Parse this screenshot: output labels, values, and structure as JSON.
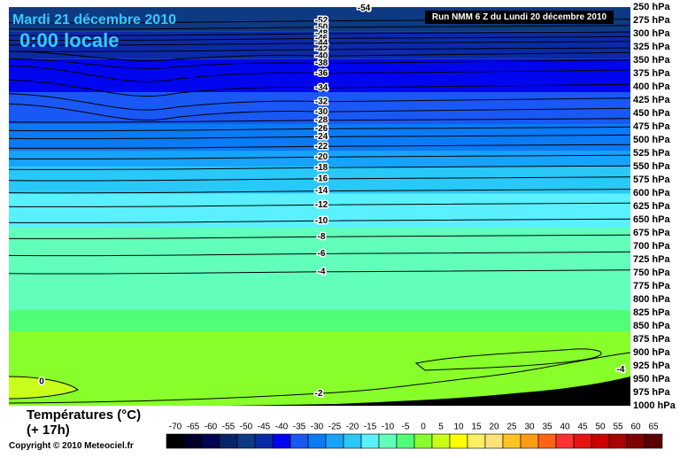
{
  "header": {
    "date": "Mardi 21 décembre 2010",
    "time": "0:00 locale",
    "run": "Run NMM 6 Z du Lundi 20 décembre 2010"
  },
  "footer": {
    "variable": "Températures (°C)",
    "lead": "(+ 17h)",
    "copyright": "Copyright © 2010 Meteociel.fr"
  },
  "chart_data": {
    "type": "heatmap",
    "y_axis": {
      "scale": "pressure",
      "ticks": [
        "250 hPa",
        "275 hPa",
        "300 hPa",
        "325 hPa",
        "350 hPa",
        "375 hPa",
        "400 hPa",
        "425 hPa",
        "450 hPa",
        "475 hPa",
        "500 hPa",
        "525 hPa",
        "550 hPa",
        "575 hPa",
        "600 hPa",
        "625 hPa",
        "650 hPa",
        "675 hPa",
        "700 hPa",
        "725 hPa",
        "750 hPa",
        "775 hPa",
        "800 hPa",
        "825 hPa",
        "850 hPa",
        "875 hPa",
        "900 hPa",
        "925 hPa",
        "950 hPa",
        "975 hPa",
        "1000 hPa"
      ],
      "range": [
        1000,
        250
      ]
    },
    "isotherms": {
      "label_column": [
        {
          "value": -52,
          "p": 276
        },
        {
          "value": -50,
          "p": 288
        },
        {
          "value": -48,
          "p": 300
        },
        {
          "value": -46,
          "p": 309
        },
        {
          "value": -44,
          "p": 318
        },
        {
          "value": -42,
          "p": 330
        },
        {
          "value": -40,
          "p": 342
        },
        {
          "value": -38,
          "p": 356
        },
        {
          "value": -36,
          "p": 375
        },
        {
          "value": -34,
          "p": 402
        },
        {
          "value": -32,
          "p": 428
        },
        {
          "value": -30,
          "p": 447
        },
        {
          "value": -28,
          "p": 463
        },
        {
          "value": -26,
          "p": 479
        },
        {
          "value": -24,
          "p": 494
        },
        {
          "value": -22,
          "p": 512
        },
        {
          "value": -20,
          "p": 532
        },
        {
          "value": -18,
          "p": 552
        },
        {
          "value": -16,
          "p": 573
        },
        {
          "value": -14,
          "p": 596
        },
        {
          "value": -12,
          "p": 622
        },
        {
          "value": -10,
          "p": 652
        },
        {
          "value": -8,
          "p": 682
        },
        {
          "value": -6,
          "p": 714
        },
        {
          "value": -4,
          "p": 748
        },
        {
          "value": -2,
          "p": 977
        }
      ],
      "other_labels": [
        {
          "value": -54,
          "p": 252,
          "where": "upper middle"
        },
        {
          "value": 0,
          "p": 955,
          "where": "left edge"
        },
        {
          "value": -4,
          "p": 932,
          "where": "right edge"
        }
      ]
    },
    "color_bands": [
      {
        "label": "-70",
        "color": "#000000"
      },
      {
        "label": "-65",
        "color": "#00002a"
      },
      {
        "label": "-60",
        "color": "#000550"
      },
      {
        "label": "-55",
        "color": "#072468"
      },
      {
        "label": "-50",
        "color": "#0d3a82"
      },
      {
        "label": "-45",
        "color": "#0a2aa8"
      },
      {
        "label": "-40",
        "color": "#0005f0"
      },
      {
        "label": "-35",
        "color": "#1a58f5"
      },
      {
        "label": "-30",
        "color": "#0a7af5"
      },
      {
        "label": "-25",
        "color": "#16a3fc"
      },
      {
        "label": "-20",
        "color": "#28c8f8"
      },
      {
        "label": "-15",
        "color": "#5af0ff"
      },
      {
        "label": "-10",
        "color": "#62ffba"
      },
      {
        "label": "-5",
        "color": "#50ff78"
      },
      {
        "label": "0",
        "color": "#88ff2a"
      },
      {
        "label": "5",
        "color": "#c8ff1a"
      },
      {
        "label": "10",
        "color": "#ffff00"
      },
      {
        "label": "15",
        "color": "#f8f060"
      },
      {
        "label": "20",
        "color": "#ffe27a"
      },
      {
        "label": "25",
        "color": "#ffc41e"
      },
      {
        "label": "30",
        "color": "#ff9c14"
      },
      {
        "label": "35",
        "color": "#ff6414"
      },
      {
        "label": "40",
        "color": "#ff3232"
      },
      {
        "label": "45",
        "color": "#e81414"
      },
      {
        "label": "50",
        "color": "#cc0000"
      },
      {
        "label": "55",
        "color": "#aa0000"
      },
      {
        "label": "60",
        "color": "#800000"
      },
      {
        "label": "65",
        "color": "#5a0000"
      }
    ]
  }
}
